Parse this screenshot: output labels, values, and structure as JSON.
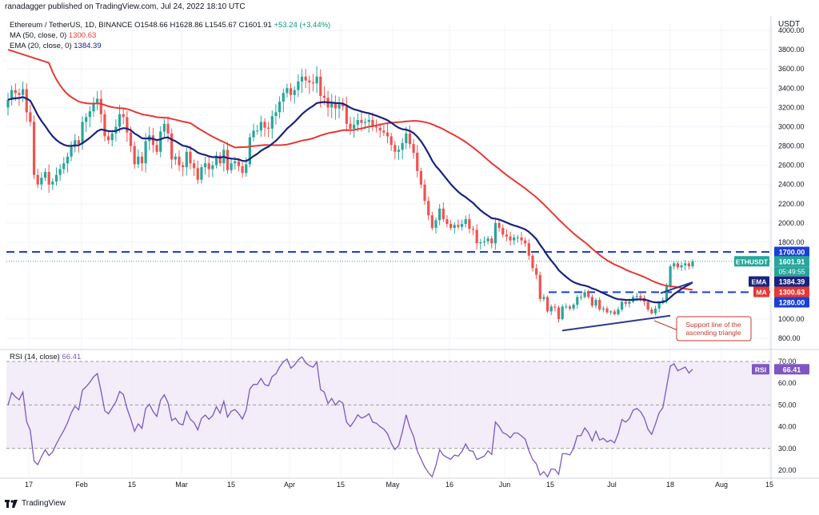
{
  "header": {
    "publisher": "ranadagger published on TradingView.com, Jul 24, 2022 18:10 UTC",
    "symbol": "Ethereum / TetherUS, 1D, BINANCE",
    "ohlc": [
      "O1548.66",
      "H1628.86",
      "L1545.67",
      "C1601.91",
      "+53.24 (+3.44%)"
    ],
    "ma_label": "MA (50, close, 0)",
    "ma_value": "1300.63",
    "ema_label": "EMA (20, close, 0)",
    "ema_value": "1384.39",
    "rsi_label": "RSI (14, close)",
    "rsi_value": "66.41",
    "currency": "USDT"
  },
  "footer": {
    "brand": "TradingView"
  },
  "colors": {
    "up": "#26a69a",
    "down": "#ef5350",
    "ma": "#e53935",
    "ema": "#1a237e",
    "rsi": "#7e57c2",
    "hline": "#1a3fd6",
    "trend": "#2b3a8c",
    "rsi_band": "#ede7f6"
  },
  "chart_data": [
    {
      "type": "candlestick",
      "title": "Ethereum / TetherUS, 1D, BINANCE",
      "ylim": [
        700,
        4000
      ],
      "price_ticks": [
        "4000.00",
        "3800.00",
        "3600.00",
        "3400.00",
        "3200.00",
        "3000.00",
        "2800.00",
        "2600.00",
        "2400.00",
        "2200.00",
        "2000.00",
        "1800.00",
        "1000.00",
        "800.00"
      ],
      "x_ticks": [
        "17",
        "Feb",
        "15",
        "Mar",
        "15",
        "Apr",
        "15",
        "May",
        "16",
        "Jun",
        "15",
        "Jul",
        "18",
        "Aug",
        "15"
      ],
      "horizontal_levels": [
        1700,
        1280
      ],
      "price_labels": [
        {
          "name": "1700.00",
          "value": 1700,
          "color": "#1a3fd6"
        },
        {
          "name": "ETHUSDT",
          "value": 1601.91,
          "text": "1601.91",
          "sub": "05:49:55",
          "color": "#26a69a"
        },
        {
          "name": "EMA",
          "value": 1384.39,
          "text": "1384.39",
          "color": "#1a237e"
        },
        {
          "name": "MA",
          "value": 1300.63,
          "text": "1300.63",
          "color": "#e53935"
        },
        {
          "name": "1280.00",
          "value": 1280,
          "color": "#1a3fd6"
        }
      ],
      "annotation": "Support line of the\nascending triangle",
      "close": [
        3280,
        3380,
        3350,
        3330,
        3390,
        3150,
        3050,
        2500,
        2400,
        2470,
        2530,
        2400,
        2430,
        2500,
        2560,
        2620,
        2690,
        2790,
        2860,
        2820,
        3050,
        3100,
        3160,
        3240,
        3290,
        3130,
        2900,
        2860,
        2930,
        3000,
        3130,
        3100,
        2940,
        2800,
        2610,
        2690,
        2620,
        2850,
        2910,
        2810,
        2740,
        2950,
        3030,
        2930,
        2660,
        2690,
        2600,
        2580,
        2740,
        2620,
        2570,
        2450,
        2580,
        2620,
        2560,
        2600,
        2700,
        2620,
        2760,
        2550,
        2620,
        2640,
        2590,
        2520,
        2610,
        2890,
        2960,
        2960,
        3050,
        2990,
        2980,
        3110,
        3150,
        3260,
        3350,
        3400,
        3330,
        3380,
        3470,
        3520,
        3480,
        3460,
        3450,
        3520,
        3320,
        3300,
        3200,
        3250,
        3190,
        3230,
        3210,
        3030,
        2980,
        3020,
        3070,
        3040,
        3050,
        3070,
        3000,
        2990,
        2960,
        2940,
        2900,
        2810,
        2740,
        2760,
        2830,
        2930,
        2820,
        2730,
        2540,
        2400,
        2230,
        2080,
        1950,
        2030,
        2150,
        2040,
        1990,
        1950,
        1980,
        1960,
        1990,
        2040,
        1940,
        1930,
        1790,
        1800,
        1810,
        1840,
        1790,
        2000,
        1950,
        1880,
        1860,
        1820,
        1850,
        1850,
        1820,
        1790,
        1660,
        1530,
        1460,
        1210,
        1230,
        1080,
        1130,
        1120,
        1000,
        1130,
        1130,
        1110,
        1150,
        1230,
        1230,
        1280,
        1230,
        1140,
        1200,
        1100,
        1110,
        1070,
        1080,
        1050,
        1100,
        1180,
        1160,
        1180,
        1230,
        1240,
        1220,
        1180,
        1100,
        1060,
        1110,
        1170,
        1200,
        1340,
        1550,
        1580,
        1540,
        1560,
        1580,
        1550,
        1601.91
      ],
      "ma50": {
        "name": "MA (50, close, 0)",
        "value": 1300.63
      },
      "ema20": {
        "name": "EMA (20, close, 0)",
        "value": 1384.39
      }
    },
    {
      "type": "line",
      "title": "RSI (14, close)",
      "ylim": [
        15,
        75
      ],
      "ticks": [
        "70.00",
        "60.00",
        "50.00",
        "40.00",
        "30.00",
        "20.00"
      ],
      "levels": [
        70,
        50,
        30
      ],
      "series": [
        {
          "name": "RSI (14, close)",
          "last": 66.41
        }
      ]
    }
  ]
}
